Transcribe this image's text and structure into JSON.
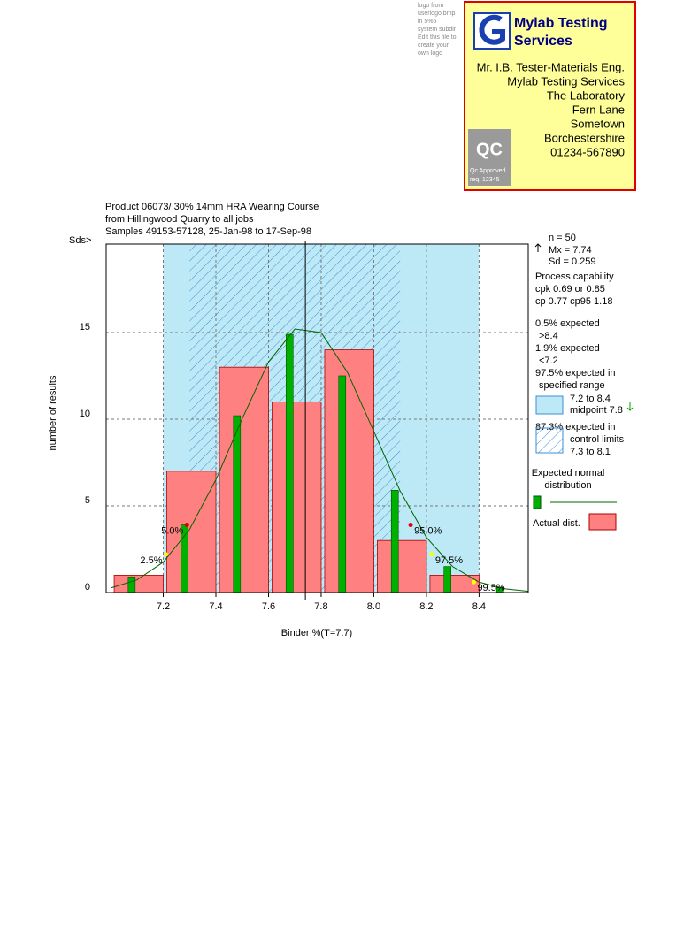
{
  "logo_note": [
    "logo from",
    "userlogo.bmp",
    "in 5%5",
    "system subdir",
    "Edit this file to",
    "create your",
    "own logo"
  ],
  "letterhead": {
    "company": [
      "Mylab Testing",
      "Services"
    ],
    "address": [
      "Mr. I.B. Tester-Materials Eng.",
      "Mylab Testing Services",
      "The Laboratory",
      "Fern Lane",
      "Sometown",
      "Borchestershire",
      "01234-567890"
    ],
    "badge": [
      "QC",
      "Qc Approved",
      "req. 12345"
    ]
  },
  "chart_data": {
    "type": "histogram",
    "title_lines": [
      "Product 06073/ 30% 14mm HRA Wearing Course",
      "from Hillingwood Quarry to all jobs",
      "Samples 49153-57128, 25-Jan-98 to 17-Sep-98"
    ],
    "corner_label": "Sds>",
    "x_label": "Binder %(T=7.7)",
    "y_label": "number of results",
    "xlim": [
      6.983,
      8.587
    ],
    "ylim": [
      0,
      20.1
    ],
    "xticks": [
      7.2,
      7.4,
      7.6,
      7.8,
      {
        "value": 8,
        "label": "8.0"
      },
      8.2,
      8.4
    ],
    "yticks": [
      0,
      5,
      10,
      15
    ],
    "grid": true,
    "specified_range": {
      "range": [
        7.2,
        8.4
      ],
      "color": "#bde9f7"
    },
    "control_limits": {
      "range": [
        7.3,
        8.1
      ],
      "color": "#3a8fd6"
    },
    "mean_line": 7.74,
    "histogram": {
      "name": "Actual dist.",
      "color": "#ff8080",
      "bins": [
        7.0,
        7.2,
        7.4,
        7.6,
        7.8,
        8.0,
        8.2,
        8.4
      ],
      "values": [
        1,
        7,
        13,
        11,
        14,
        3,
        1
      ]
    },
    "expected": {
      "name": "Expected normal distribution",
      "color": "#00b000",
      "x": [
        7.08,
        7.28,
        7.48,
        7.68,
        7.88,
        8.08,
        8.28,
        8.48
      ],
      "values": [
        0.9,
        3.9,
        10.2,
        14.9,
        12.5,
        5.9,
        1.5,
        0.3
      ]
    },
    "curve": {
      "color": "#006400",
      "x": [
        7.0,
        7.1,
        7.2,
        7.3,
        7.4,
        7.5,
        7.6,
        7.7,
        7.8,
        7.9,
        8.0,
        8.1,
        8.2,
        8.3,
        8.4,
        8.5,
        8.587
      ],
      "values": [
        0.26,
        0.73,
        1.75,
        3.64,
        6.51,
        10.03,
        13.3,
        15.2,
        15.0,
        12.7,
        9.3,
        5.86,
        3.18,
        1.49,
        0.6,
        0.21,
        0.07
      ]
    },
    "percentiles": [
      {
        "label": "2.5%",
        "x": 7.21,
        "y": 2.2,
        "color": "#ffff00"
      },
      {
        "label": "5.0%",
        "x": 7.29,
        "y": 3.9,
        "color": "#e00000"
      },
      {
        "label": "95.0%",
        "x": 8.14,
        "y": 3.9,
        "color": "#e00000"
      },
      {
        "label": "97.5%",
        "x": 8.22,
        "y": 2.2,
        "color": "#ffff00"
      },
      {
        "label": "99.5%",
        "x": 8.38,
        "y": 0.6,
        "color": "#ffff00"
      }
    ],
    "side_text": [
      "n  =  50",
      "Mx = 7.74",
      "Sd = 0.259",
      "Process capability",
      "cpk 0.69 or 0.85",
      "cp 0.77 cp95 1.18",
      "0.5% expected",
      ">8.4",
      "1.9% expected",
      "<7.2",
      "97.5% expected in",
      "specified range",
      "7.2 to 8.4",
      "midpoint 7.8",
      "87.3% expected in",
      "control limits",
      "7.3 to 8.1"
    ]
  }
}
